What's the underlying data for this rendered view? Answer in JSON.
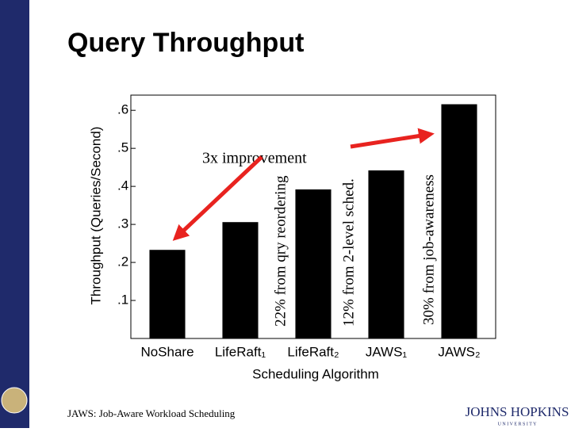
{
  "chart_data": {
    "type": "bar",
    "title": "Query Throughput",
    "x_label": "Scheduling Algorithm",
    "y_label": "Throughput (Queries/Second)",
    "categories": [
      "NoShare",
      "LifeRaft₁",
      "LifeRaft₂",
      "JAWS₁",
      "JAWS₂"
    ],
    "values": [
      0.233,
      0.306,
      0.392,
      0.442,
      0.616
    ],
    "color": "#000000",
    "ylim": [
      0,
      0.64
    ],
    "yticks": [
      {
        "value": 0.1,
        "label": ".1"
      },
      {
        "value": 0.2,
        "label": ".2"
      },
      {
        "value": 0.3,
        "label": ".3"
      },
      {
        "value": 0.4,
        "label": ".4"
      },
      {
        "value": 0.5,
        "label": ".5"
      },
      {
        "value": 0.6,
        "label": ".6"
      }
    ],
    "annotations": [
      "3x improvement",
      "22% from qry reordering",
      "12% from 2-level sched.",
      "30% from job-awareness"
    ]
  },
  "footer": "JAWS: Job-Aware Workload Scheduling",
  "logo": {
    "name": "JOHNS HOPKINS",
    "sub": "U N I V E R S I T Y"
  }
}
